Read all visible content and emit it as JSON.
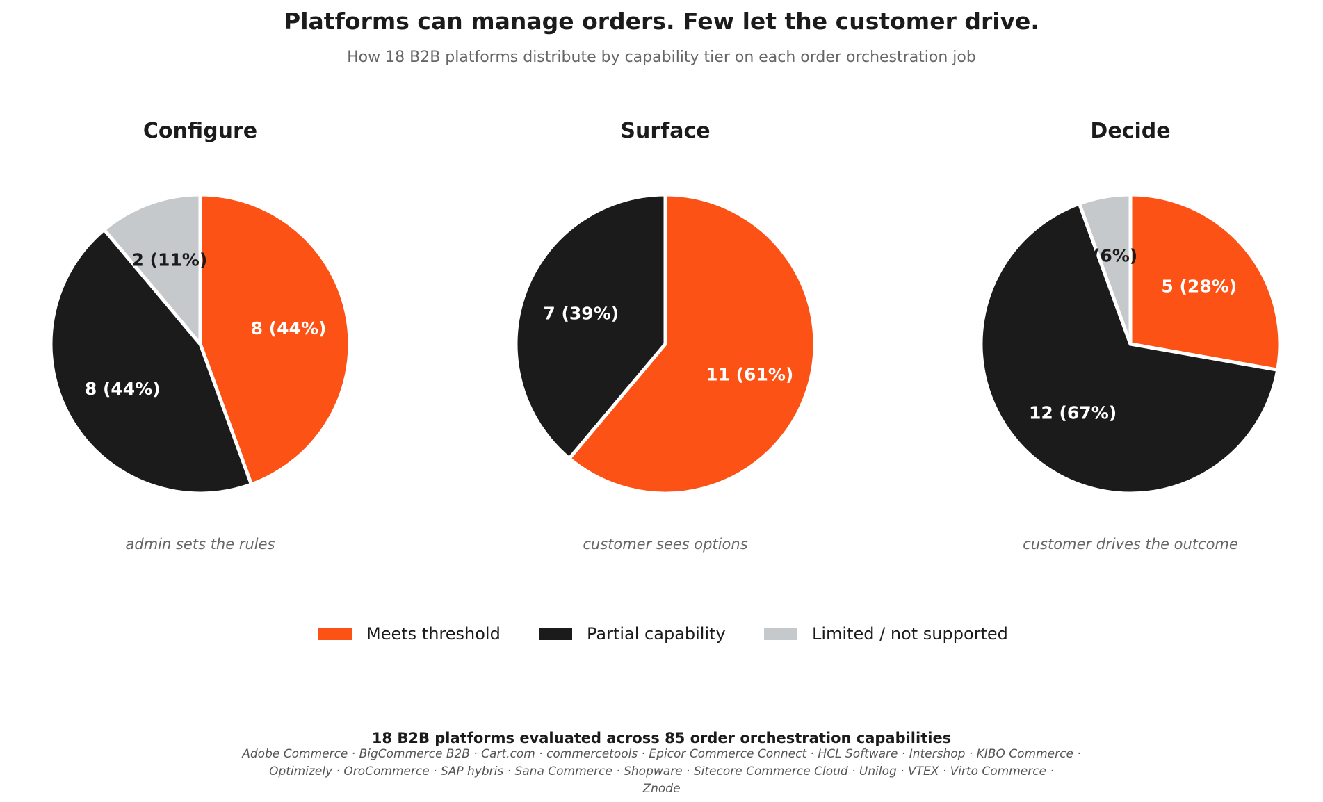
{
  "title": "Platforms can manage orders. Few let the customer drive.",
  "subtitle": "How 18 B2B platforms distribute by capability tier on each order orchestration job",
  "colors": {
    "meets": "#fc5216",
    "partial": "#1b1b1b",
    "limited": "#c5c9cc"
  },
  "legend": [
    {
      "key": "meets",
      "label": "Meets threshold"
    },
    {
      "key": "partial",
      "label": "Partial capability"
    },
    {
      "key": "limited",
      "label": "Limited / not supported"
    }
  ],
  "footer": {
    "heading": "18 B2B platforms evaluated across 85 order orchestration capabilities",
    "lines": [
      "Adobe Commerce · BigCommerce B2B · Cart.com · commercetools · Epicor Commerce Connect · HCL Software · Intershop · KIBO Commerce ·",
      "Optimizely · OroCommerce · SAP hybris · Sana Commerce · Shopware · Sitecore Commerce Cloud · Unilog · VTEX · Virto Commerce ·",
      "Znode"
    ]
  },
  "chart_data": [
    {
      "type": "pie",
      "title": "Configure",
      "caption": "admin sets the rules",
      "slices": [
        {
          "name": "Meets threshold",
          "key": "meets",
          "value": 8,
          "label": "8 (44%)"
        },
        {
          "name": "Partial capability",
          "key": "partial",
          "value": 8,
          "label": "8 (44%)"
        },
        {
          "name": "Limited / not supported",
          "key": "limited",
          "value": 2,
          "label": "2 (11%)"
        }
      ]
    },
    {
      "type": "pie",
      "title": "Surface",
      "caption": "customer sees options",
      "slices": [
        {
          "name": "Meets threshold",
          "key": "meets",
          "value": 11,
          "label": "11 (61%)"
        },
        {
          "name": "Partial capability",
          "key": "partial",
          "value": 7,
          "label": "7 (39%)"
        },
        {
          "name": "Limited / not supported",
          "key": "limited",
          "value": 0,
          "label": ""
        }
      ]
    },
    {
      "type": "pie",
      "title": "Decide",
      "caption": "customer drives the outcome",
      "slices": [
        {
          "name": "Meets threshold",
          "key": "meets",
          "value": 5,
          "label": "5 (28%)"
        },
        {
          "name": "Partial capability",
          "key": "partial",
          "value": 12,
          "label": "12 (67%)"
        },
        {
          "name": "Limited / not supported",
          "key": "limited",
          "value": 1,
          "label": "(6%)"
        }
      ]
    }
  ]
}
